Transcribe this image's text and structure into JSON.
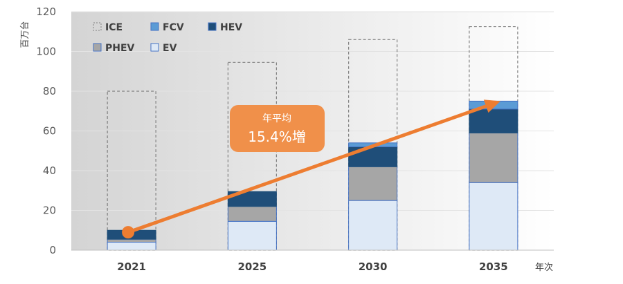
{
  "chart_data": {
    "type": "bar",
    "categories": [
      "2021",
      "2025",
      "2030",
      "2035"
    ],
    "series": [
      {
        "name": "EV",
        "values": [
          4,
          14.5,
          25,
          34
        ],
        "color": "#dee9f6",
        "stroke": "#4472c4"
      },
      {
        "name": "PHEV",
        "values": [
          1.5,
          7.5,
          17,
          25
        ],
        "color": "#a6a6a6",
        "stroke": "#4472c4"
      },
      {
        "name": "HEV",
        "values": [
          4.5,
          7.5,
          10,
          12
        ],
        "color": "#1f4e79",
        "stroke": "#1f4e79"
      },
      {
        "name": "FCV",
        "values": [
          0,
          0,
          2,
          4
        ],
        "color": "#5b9bd5",
        "stroke": "#4472c4"
      }
    ],
    "totals": {
      "name": "ICE",
      "values": [
        80,
        94.5,
        106,
        112.5
      ],
      "style": "dashed-outline",
      "color": "#808080"
    },
    "xlabel": "年次",
    "ylabel": "百万台",
    "ylim": [
      0,
      120
    ],
    "yticks": [
      0,
      20,
      40,
      60,
      80,
      100,
      120
    ],
    "grid": true,
    "legend": {
      "placement": "top-left",
      "items": [
        {
          "name": "ICE",
          "swatch": "dashed"
        },
        {
          "name": "FCV",
          "swatch": "#5b9bd5"
        },
        {
          "name": "HEV",
          "swatch": "#1f4e79"
        },
        {
          "name": "PHEV",
          "swatch": "#a6a6a6"
        },
        {
          "name": "EV",
          "swatch": "#dee9f6"
        }
      ]
    },
    "trend_arrow": {
      "from_category": "2021",
      "from_value": 9,
      "to_category": "2035",
      "to_value": 75,
      "color": "#ed7d31"
    },
    "annotation": {
      "line1": "年平均",
      "line2": "15.4%増",
      "color": "#f0904a"
    }
  }
}
